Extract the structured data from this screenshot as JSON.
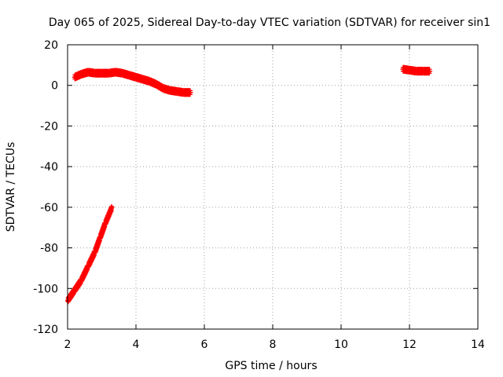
{
  "chart_data": {
    "type": "scatter",
    "title": "Day 065 of 2025, Sidereal Day-to-day VTEC variation (SDTVAR) for receiver sin1",
    "xlabel": "GPS time / hours",
    "ylabel": "SDTVAR / TECUs",
    "xlim": [
      2,
      14
    ],
    "ylim": [
      -120,
      20
    ],
    "x_ticks": [
      2,
      4,
      6,
      8,
      10,
      12,
      14
    ],
    "y_ticks": [
      20,
      0,
      -20,
      -40,
      -60,
      -80,
      -100,
      -120
    ],
    "x_tick_labels": [
      "2",
      "4",
      "6",
      "8",
      "10",
      "12",
      "14"
    ],
    "y_tick_labels": [
      "20",
      "0",
      "-20",
      "-40",
      "-60",
      "-80",
      "-100",
      "-120"
    ],
    "grid": true,
    "marker_color": "#ff0000",
    "series": [
      {
        "points": [
          [
            2.0,
            -106
          ],
          [
            2.2,
            -101
          ],
          [
            2.4,
            -96
          ],
          [
            2.6,
            -89
          ],
          [
            2.8,
            -82
          ],
          [
            2.95,
            -75
          ],
          [
            3.1,
            -68
          ],
          [
            3.3,
            -60
          ],
          [
            2.2,
            4
          ],
          [
            2.4,
            5.5
          ],
          [
            2.6,
            6.5
          ],
          [
            2.8,
            6
          ],
          [
            3.0,
            6
          ],
          [
            3.2,
            6
          ],
          [
            3.4,
            6.5
          ],
          [
            3.6,
            6
          ],
          [
            3.8,
            5
          ],
          [
            4.0,
            4
          ],
          [
            4.2,
            3
          ],
          [
            4.4,
            2
          ],
          [
            4.6,
            0.5
          ],
          [
            4.8,
            -1.5
          ],
          [
            5.0,
            -2.5
          ],
          [
            5.2,
            -3
          ],
          [
            5.4,
            -3.5
          ],
          [
            5.6,
            -3.5
          ],
          [
            11.8,
            8
          ],
          [
            12.0,
            7.5
          ],
          [
            12.2,
            7
          ],
          [
            12.4,
            7
          ],
          [
            12.6,
            7
          ]
        ]
      }
    ]
  }
}
